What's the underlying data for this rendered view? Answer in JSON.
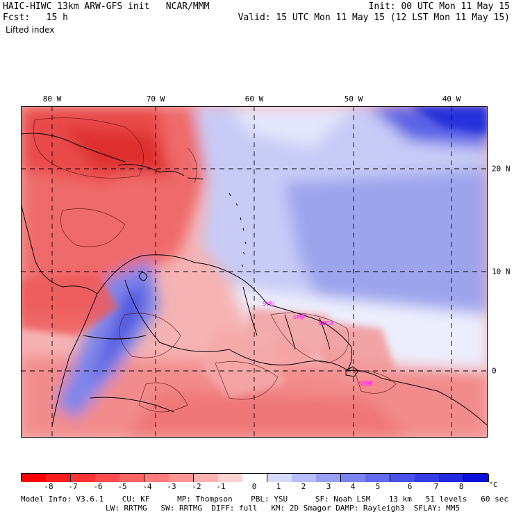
{
  "header": {
    "model_line": "HAIC-HIWC 13km ARW-GFS init   NCAR/MMM",
    "init_line": "Init: 00 UTC Mon 11 May 15",
    "fcst_line": "Fcst:   15 h",
    "valid_line": "Valid: 15 UTC Mon 11 May 15 (12 LST Mon 11 May 15)",
    "field_name": "Lifted index"
  },
  "map": {
    "lon_labels": [
      "80 W",
      "70 W",
      "60 W",
      "50 W",
      "40 W"
    ],
    "lat_labels": [
      "20 N",
      "10 N",
      "0"
    ],
    "station_labels": [
      "SYEJ",
      "SMJP",
      "SOCA",
      "SBBE"
    ],
    "colors": {
      "strong_unstable": "#ee3b3b",
      "unstable": "#f58a8a",
      "neutral": "#ffffff",
      "stable": "#b9bff2",
      "strong_stable": "#2430e0",
      "station_label": "#ff00ff"
    }
  },
  "colorbar": {
    "labels": [
      "-8",
      "-7",
      "-6",
      "-5",
      "-4",
      "-3",
      "-2",
      "-1",
      "0",
      "1",
      "2",
      "3",
      "4",
      "5",
      "6",
      "7",
      "8"
    ],
    "unit": "°C",
    "colors": [
      "#ff0000",
      "#ff1e1e",
      "#ff3434",
      "#ff4c4c",
      "#ff6464",
      "#ff7c7c",
      "#ff9696",
      "#ffb2b2",
      "#ffd2d2",
      "#ffffff",
      "#d6dafd",
      "#b8bdfa",
      "#9aa0f6",
      "#7d84f2",
      "#626aee",
      "#4a52ea",
      "#353ce6",
      "#2028e0",
      "#0a10dc"
    ]
  },
  "model_info": {
    "line1": "Model Info: V3.6.1    CU: KF      MP: Thompson    PBL: YSU      SF: Noah LSM    13 km   51 levels   60 sec",
    "line2": "LW: RRTMG   SW: RRTMG  DIFF: full   KM: 2D Smagor DAMP: Rayleigh3  SFLAY: MM5"
  }
}
